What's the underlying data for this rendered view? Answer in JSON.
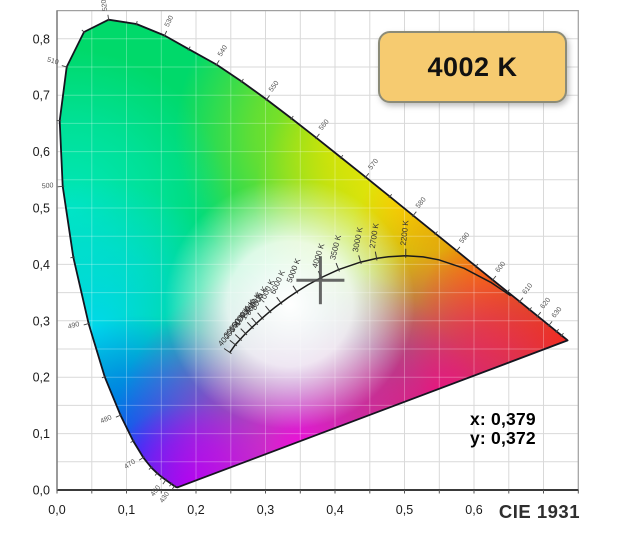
{
  "badge": {
    "label": "4002 K",
    "fill": "#f6cb70",
    "border": "#8b8b78",
    "text_color": "#111111"
  },
  "readout": {
    "x_text": "x: 0,379",
    "y_text": "y: 0,372"
  },
  "footer": {
    "title": "CIE 1931"
  },
  "chart_data": {
    "type": "scatter",
    "diagram": "CIE 1931 xy chromaticity diagram with Planckian locus",
    "title": "",
    "xlabel": "",
    "ylabel": "",
    "xlim": [
      0,
      0.75
    ],
    "ylim": [
      0,
      0.85
    ],
    "grid": true,
    "grid_step": 0.05,
    "x_ticks": [
      [
        0,
        "0,0"
      ],
      [
        0.1,
        "0,1"
      ],
      [
        0.2,
        "0,2"
      ],
      [
        0.3,
        "0,3"
      ],
      [
        0.4,
        "0,4"
      ],
      [
        0.5,
        "0,5"
      ],
      [
        0.6,
        "0,6"
      ]
    ],
    "y_ticks": [
      [
        0,
        "0,0"
      ],
      [
        0.1,
        "0,1"
      ],
      [
        0.2,
        "0,2"
      ],
      [
        0.3,
        "0,3"
      ],
      [
        0.4,
        "0,4"
      ],
      [
        0.5,
        "0,5"
      ],
      [
        0.6,
        "0,6"
      ],
      [
        0.7,
        "0,7"
      ],
      [
        0.8,
        "0,8"
      ]
    ],
    "marker": {
      "x": 0.379,
      "y": 0.372,
      "cct_label": "4002 K"
    },
    "spectral_locus": [
      [
        380,
        0.1741,
        0.005
      ],
      [
        400,
        0.1733,
        0.0048
      ],
      [
        420,
        0.1714,
        0.0051
      ],
      [
        430,
        0.1689,
        0.0069
      ],
      [
        440,
        0.1644,
        0.0109
      ],
      [
        450,
        0.1566,
        0.0177
      ],
      [
        455,
        0.151,
        0.0227
      ],
      [
        460,
        0.144,
        0.0297
      ],
      [
        465,
        0.1355,
        0.0399
      ],
      [
        470,
        0.1241,
        0.0578
      ],
      [
        475,
        0.1096,
        0.0868
      ],
      [
        480,
        0.0913,
        0.1327
      ],
      [
        485,
        0.0687,
        0.2007
      ],
      [
        490,
        0.0454,
        0.295
      ],
      [
        495,
        0.0235,
        0.4127
      ],
      [
        500,
        0.0082,
        0.5384
      ],
      [
        505,
        0.0039,
        0.6548
      ],
      [
        510,
        0.0139,
        0.7502
      ],
      [
        515,
        0.0389,
        0.812
      ],
      [
        520,
        0.0743,
        0.8338
      ],
      [
        525,
        0.1142,
        0.8262
      ],
      [
        530,
        0.1547,
        0.8059
      ],
      [
        535,
        0.1896,
        0.7816
      ],
      [
        540,
        0.2296,
        0.7543
      ],
      [
        545,
        0.2658,
        0.7243
      ],
      [
        550,
        0.3016,
        0.6923
      ],
      [
        555,
        0.3373,
        0.6589
      ],
      [
        560,
        0.3731,
        0.6245
      ],
      [
        565,
        0.4087,
        0.5896
      ],
      [
        570,
        0.4441,
        0.5547
      ],
      [
        575,
        0.4788,
        0.5202
      ],
      [
        580,
        0.5125,
        0.4866
      ],
      [
        585,
        0.5448,
        0.4544
      ],
      [
        590,
        0.5752,
        0.4242
      ],
      [
        595,
        0.6029,
        0.3965
      ],
      [
        600,
        0.627,
        0.3725
      ],
      [
        605,
        0.6482,
        0.3514
      ],
      [
        610,
        0.6658,
        0.334
      ],
      [
        615,
        0.6801,
        0.3197
      ],
      [
        620,
        0.6915,
        0.3083
      ],
      [
        630,
        0.7079,
        0.292
      ],
      [
        640,
        0.719,
        0.2809
      ],
      [
        650,
        0.726,
        0.274
      ],
      [
        680,
        0.7334,
        0.2666
      ],
      [
        700,
        0.7347,
        0.2653
      ]
    ],
    "wavelength_labels": [
      430,
      450,
      470,
      480,
      490,
      500,
      510,
      520,
      530,
      540,
      550,
      560,
      570,
      580,
      590,
      600,
      610,
      620,
      630
    ],
    "planckian_locus": [
      [
        1000,
        0.6528,
        0.3444
      ],
      [
        1200,
        0.6251,
        0.3675
      ],
      [
        1500,
        0.5857,
        0.3931
      ],
      [
        1800,
        0.5493,
        0.4082
      ],
      [
        2000,
        0.5267,
        0.4133
      ],
      [
        2200,
        0.5018,
        0.4153
      ],
      [
        2500,
        0.477,
        0.4137
      ],
      [
        2700,
        0.4599,
        0.4106
      ],
      [
        3000,
        0.4369,
        0.4041
      ],
      [
        3500,
        0.4053,
        0.3907
      ],
      [
        4000,
        0.3805,
        0.3768
      ],
      [
        4500,
        0.3608,
        0.3636
      ],
      [
        5000,
        0.3451,
        0.3516
      ],
      [
        5500,
        0.3325,
        0.3411
      ],
      [
        6000,
        0.3221,
        0.3318
      ],
      [
        6500,
        0.3135,
        0.3237
      ],
      [
        7000,
        0.3064,
        0.3166
      ],
      [
        8000,
        0.2952,
        0.3048
      ],
      [
        9000,
        0.2869,
        0.2956
      ],
      [
        10000,
        0.2807,
        0.2884
      ],
      [
        12000,
        0.2714,
        0.2774
      ],
      [
        15000,
        0.2637,
        0.2673
      ],
      [
        20000,
        0.2565,
        0.2577
      ],
      [
        40000,
        0.2487,
        0.2438
      ]
    ],
    "temp_labels": [
      [
        2200,
        -84
      ],
      [
        2700,
        -81
      ],
      [
        3000,
        -79
      ],
      [
        3500,
        -76
      ],
      [
        4000,
        -73
      ],
      [
        5000,
        -69
      ],
      [
        6000,
        -66
      ],
      [
        7000,
        -64
      ],
      [
        8000,
        -62
      ],
      [
        9000,
        -60
      ],
      [
        10000,
        -58
      ],
      [
        12000,
        -56
      ],
      [
        15000,
        -54
      ],
      [
        20000,
        -52
      ],
      [
        40000,
        -50
      ]
    ],
    "colors": {
      "background": "#ffffff",
      "grid": "#d9d9d9",
      "grid_overlay": "rgba(255,255,255,0.28)",
      "plot_border": "#a0a0a0",
      "axis": "#3a3a3a",
      "locus_outline": "#15151f",
      "planckian": "#1a1a1a",
      "marker": "#4d4d4d",
      "wl_label": "#555555",
      "temp_label": "#333333",
      "axis_label": "#1b1b1b"
    },
    "fill_model": {
      "base": "#00D96A",
      "blobs": [
        {
          "x": 0.415,
          "y": 0.63,
          "r": 170,
          "c": "#BFE400",
          "stops": [
            [
              0,
              0.95
            ],
            [
              0.55,
              0.5
            ],
            [
              1,
              0
            ]
          ]
        },
        {
          "x": 0.5,
          "y": 0.515,
          "r": 150,
          "c": "#FFE400",
          "stops": [
            [
              0,
              0.95
            ],
            [
              0.55,
              0.5
            ],
            [
              1,
              0
            ]
          ]
        },
        {
          "x": 0.615,
          "y": 0.4,
          "r": 140,
          "c": "#FF9000",
          "stops": [
            [
              0,
              0.95
            ],
            [
              0.55,
              0.5
            ],
            [
              1,
              0
            ]
          ]
        },
        {
          "x": 0.734,
          "y": 0.264,
          "r": 155,
          "c": "#FF2512",
          "stops": [
            [
              0,
              0.95
            ],
            [
              0.55,
              0.5
            ],
            [
              1,
              0
            ]
          ]
        },
        {
          "x": 0.019,
          "y": 0.497,
          "r": 160,
          "c": "#00E8C0",
          "stops": [
            [
              0,
              0.95
            ],
            [
              0.55,
              0.5
            ],
            [
              1,
              0
            ]
          ]
        },
        {
          "x": 0.055,
          "y": 0.284,
          "r": 150,
          "c": "#00D8F0",
          "stops": [
            [
              0,
              0.95
            ],
            [
              0.55,
              0.5
            ],
            [
              1,
              0
            ]
          ]
        },
        {
          "x": 0.119,
          "y": 0.071,
          "r": 135,
          "c": "#0048FF",
          "stops": [
            [
              0,
              0.95
            ],
            [
              0.55,
              0.5
            ],
            [
              1,
              0
            ]
          ]
        },
        {
          "x": 0.191,
          "y": 0.005,
          "r": 85,
          "c": "#8000FF",
          "stops": [
            [
              0,
              0.95
            ],
            [
              0.55,
              0.55
            ],
            [
              1,
              0
            ]
          ]
        },
        {
          "x": 0.35,
          "y": 0.071,
          "r": 190,
          "c": "#FF00E0",
          "stops": [
            [
              0,
              0.95
            ],
            [
              0.55,
              0.5
            ],
            [
              1,
              0
            ]
          ]
        },
        {
          "x": 0.558,
          "y": 0.16,
          "r": 150,
          "c": "#FF0080",
          "stops": [
            [
              0,
              0.9
            ],
            [
              0.55,
              0.45
            ],
            [
              1,
              0
            ]
          ]
        },
        {
          "x": 0.335,
          "y": 0.33,
          "r": 125,
          "c": "#FFFFFF",
          "stops": [
            [
              0,
              1
            ],
            [
              0.5,
              0.85
            ],
            [
              1,
              0
            ]
          ]
        }
      ]
    }
  }
}
